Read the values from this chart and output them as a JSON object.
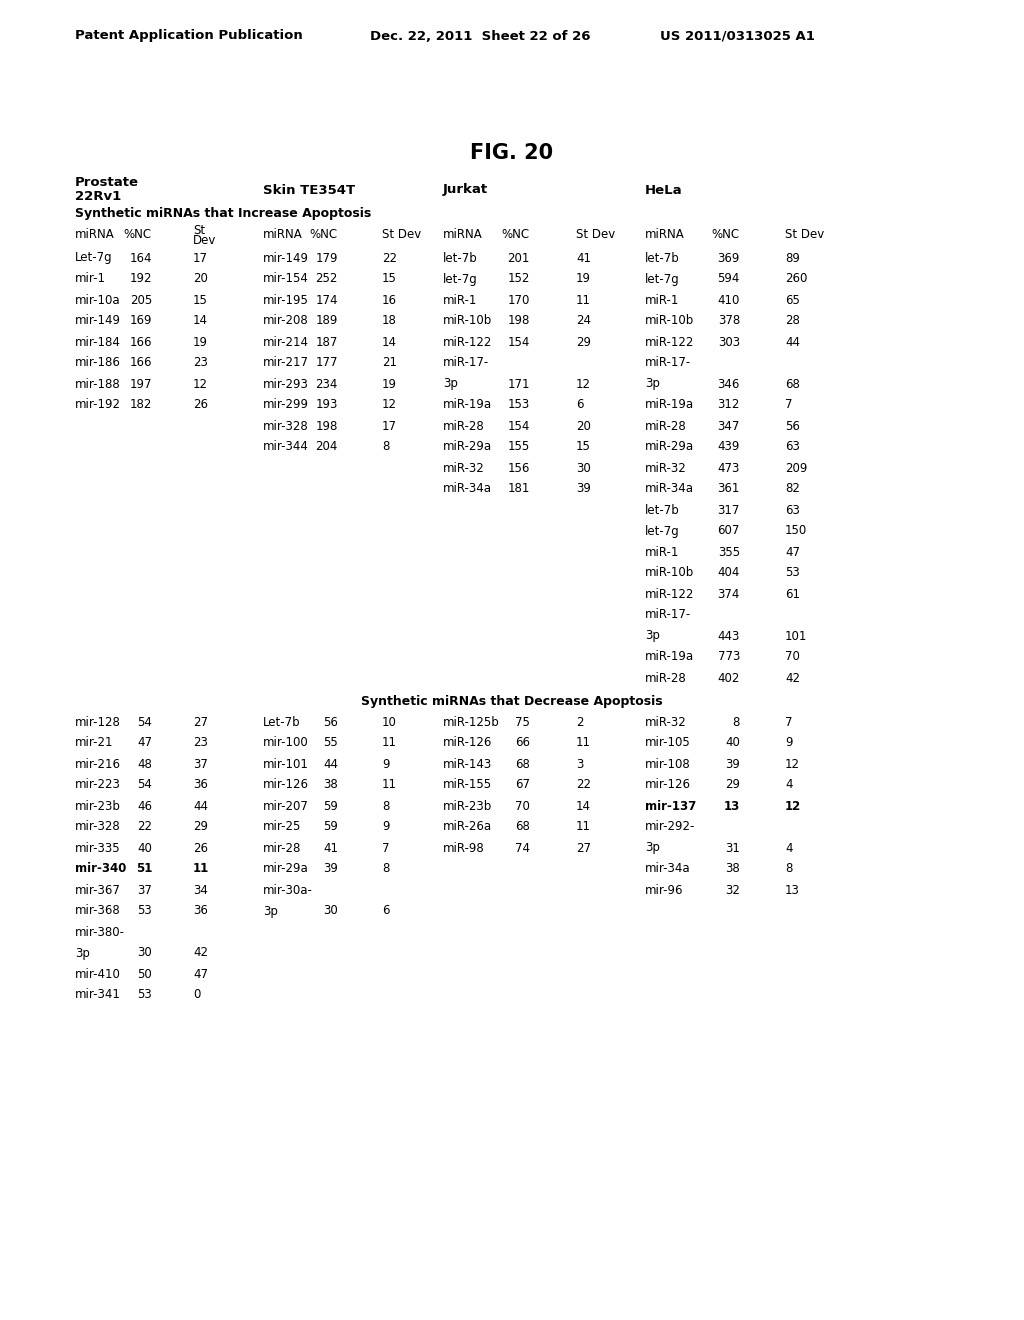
{
  "background_color": "#ffffff",
  "header_left": "Patent Application Publication",
  "header_mid": "Dec. 22, 2011  Sheet 22 of 26",
  "header_right": "US 2011/0313025 A1",
  "fig_title": "FIG. 20",
  "section_increase": "Synthetic miRNAs that Increase Apoptosis",
  "section_decrease": "Synthetic miRNAs that Decrease Apoptosis",
  "col_label_mirna": "miRNA",
  "col_label_nc": "%NC",
  "col_label_stdev": "St Dev",
  "col_label_st": "St",
  "col_label_dev": "Dev",
  "prostate_label1": "Prostate",
  "prostate_label2": "22Rv1",
  "skin_label": "Skin TE354T",
  "jurkat_label": "Jurkat",
  "hela_label": "HeLa",
  "increase_prostate": [
    [
      "Let-7g",
      "164",
      "17"
    ],
    [
      "mir-1",
      "192",
      "20"
    ],
    [
      "mir-10a",
      "205",
      "15"
    ],
    [
      "mir-149",
      "169",
      "14"
    ],
    [
      "mir-184",
      "166",
      "19"
    ],
    [
      "mir-186",
      "166",
      "23"
    ],
    [
      "mir-188",
      "197",
      "12"
    ],
    [
      "mir-192",
      "182",
      "26"
    ]
  ],
  "increase_skin": [
    [
      "mir-149",
      "179",
      "22"
    ],
    [
      "mir-154",
      "252",
      "15"
    ],
    [
      "mir-195",
      "174",
      "16"
    ],
    [
      "mir-208",
      "189",
      "18"
    ],
    [
      "mir-214",
      "187",
      "14"
    ],
    [
      "mir-217",
      "177",
      "21"
    ],
    [
      "mir-293",
      "234",
      "19"
    ],
    [
      "mir-299",
      "193",
      "12"
    ],
    [
      "mir-328",
      "198",
      "17"
    ],
    [
      "mir-344",
      "204",
      "8"
    ]
  ],
  "increase_jurkat": [
    [
      "let-7b",
      "201",
      "41",
      false
    ],
    [
      "let-7g",
      "152",
      "19",
      false
    ],
    [
      "miR-1",
      "170",
      "11",
      false
    ],
    [
      "miR-10b",
      "198",
      "24",
      false
    ],
    [
      "miR-122",
      "154",
      "29",
      false
    ],
    [
      "miR-17-",
      null,
      null,
      true
    ],
    [
      "3p",
      "171",
      "12",
      false
    ],
    [
      "miR-19a",
      "153",
      "6",
      false
    ],
    [
      "miR-28",
      "154",
      "20",
      false
    ],
    [
      "miR-29a",
      "155",
      "15",
      false
    ],
    [
      "miR-32",
      "156",
      "30",
      false
    ],
    [
      "miR-34a",
      "181",
      "39",
      false
    ]
  ],
  "increase_hela": [
    [
      "let-7b",
      "369",
      "89",
      false
    ],
    [
      "let-7g",
      "594",
      "260",
      false
    ],
    [
      "miR-1",
      "410",
      "65",
      false
    ],
    [
      "miR-10b",
      "378",
      "28",
      false
    ],
    [
      "miR-122",
      "303",
      "44",
      false
    ],
    [
      "miR-17-",
      null,
      null,
      true
    ],
    [
      "3p",
      "346",
      "68",
      false
    ],
    [
      "miR-19a",
      "312",
      "7",
      false
    ],
    [
      "miR-28",
      "347",
      "56",
      false
    ],
    [
      "miR-29a",
      "439",
      "63",
      false
    ],
    [
      "miR-32",
      "473",
      "209",
      false
    ],
    [
      "miR-34a",
      "361",
      "82",
      false
    ],
    [
      "let-7b",
      "317",
      "63",
      false
    ],
    [
      "let-7g",
      "607",
      "150",
      false
    ],
    [
      "miR-1",
      "355",
      "47",
      false
    ],
    [
      "miR-10b",
      "404",
      "53",
      false
    ],
    [
      "miR-122",
      "374",
      "61",
      false
    ],
    [
      "miR-17-",
      null,
      null,
      true
    ],
    [
      "3p",
      "443",
      "101",
      false
    ],
    [
      "miR-19a",
      "773",
      "70",
      false
    ],
    [
      "miR-28",
      "402",
      "42",
      false
    ]
  ],
  "decrease_prostate": [
    [
      "mir-128",
      "54",
      "27",
      false
    ],
    [
      "mir-21",
      "47",
      "23",
      false
    ],
    [
      "mir-216",
      "48",
      "37",
      false
    ],
    [
      "mir-223",
      "54",
      "36",
      false
    ],
    [
      "mir-23b",
      "46",
      "44",
      false
    ],
    [
      "mir-328",
      "22",
      "29",
      false
    ],
    [
      "mir-335",
      "40",
      "26",
      false
    ],
    [
      "mir-340",
      "51",
      "11",
      false
    ],
    [
      "mir-367",
      "37",
      "34",
      false
    ],
    [
      "mir-368",
      "53",
      "36",
      false
    ],
    [
      "mir-380-",
      null,
      null,
      true
    ],
    [
      "3p",
      "30",
      "42",
      false
    ],
    [
      "mir-410",
      "50",
      "47",
      false
    ],
    [
      "mir-341",
      "53",
      "0",
      false
    ]
  ],
  "decrease_skin": [
    [
      "Let-7b",
      "56",
      "10",
      false
    ],
    [
      "mir-100",
      "55",
      "11",
      false
    ],
    [
      "mir-101",
      "44",
      "9",
      false
    ],
    [
      "mir-126",
      "38",
      "11",
      false
    ],
    [
      "mir-207",
      "59",
      "8",
      false
    ],
    [
      "mir-25",
      "59",
      "9",
      false
    ],
    [
      "mir-28",
      "41",
      "7",
      false
    ],
    [
      "mir-29a",
      "39",
      "8",
      false
    ],
    [
      "mir-30a-",
      null,
      null,
      true
    ],
    [
      "3p",
      "30",
      "6",
      false
    ]
  ],
  "decrease_jurkat": [
    [
      "miR-125b",
      "75",
      "2",
      false
    ],
    [
      "miR-126",
      "66",
      "11",
      false
    ],
    [
      "miR-143",
      "68",
      "3",
      false
    ],
    [
      "miR-155",
      "67",
      "22",
      false
    ],
    [
      "miR-23b",
      "70",
      "14",
      false
    ],
    [
      "miR-26a",
      "68",
      "11",
      false
    ],
    [
      "miR-98",
      "74",
      "27",
      false
    ]
  ],
  "decrease_hela": [
    [
      "miR-32",
      "8",
      "7",
      false
    ],
    [
      "mir-105",
      "40",
      "9",
      false
    ],
    [
      "mir-108",
      "39",
      "12",
      false
    ],
    [
      "mir-126",
      "29",
      "4",
      false
    ],
    [
      "mir-137",
      "13",
      "12",
      false
    ],
    [
      "mir-292-",
      null,
      null,
      true
    ],
    [
      "3p",
      "31",
      "4",
      false
    ],
    [
      "mir-34a",
      "38",
      "8",
      false
    ],
    [
      "mir-96",
      "32",
      "13",
      false
    ]
  ],
  "bold_prostate_decrease": [
    7
  ],
  "bold_hela_decrease": [
    4
  ]
}
